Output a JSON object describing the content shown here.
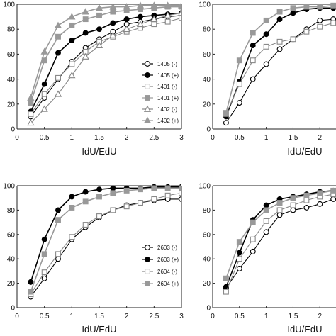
{
  "chart_data": [
    {
      "type": "line",
      "xlabel": "IdU/EdU",
      "ylabel": "",
      "xlim": [
        0,
        3
      ],
      "ylim": [
        0,
        100
      ],
      "xticks": [
        "0",
        "0.5",
        "1",
        "1.5",
        "2",
        "2.5",
        "3"
      ],
      "yticks": [
        "0",
        "20",
        "40",
        "60",
        "80",
        "100"
      ],
      "x": [
        0.25,
        0.5,
        0.75,
        1,
        1.25,
        1.5,
        1.75,
        2,
        2.25,
        2.5,
        2.75,
        3
      ],
      "legend_position": "right",
      "series": [
        {
          "name": "1405 (-)",
          "marker": "circle-open",
          "color": "#000000",
          "values": [
            10,
            25,
            40,
            54,
            65,
            72,
            78,
            84,
            86,
            88,
            90,
            91
          ]
        },
        {
          "name": "1405 (+)",
          "marker": "circle-filled",
          "color": "#000000",
          "values": [
            14,
            36,
            61,
            71,
            77,
            80,
            85,
            88,
            90,
            91,
            92,
            93
          ]
        },
        {
          "name": "1401 (-)",
          "marker": "square-open",
          "color": "#888888",
          "values": [
            12,
            28,
            41,
            52,
            62,
            70,
            74,
            78,
            81,
            84,
            86,
            89
          ]
        },
        {
          "name": "1401 (+)",
          "marker": "square-filled",
          "color": "#999999",
          "values": [
            21,
            55,
            74,
            83,
            88,
            91,
            94,
            95,
            96,
            97,
            98,
            98
          ]
        },
        {
          "name": "1402 (-)",
          "marker": "triangle-open",
          "color": "#888888",
          "values": [
            5,
            16,
            28,
            43,
            58,
            67,
            75,
            80,
            84,
            88,
            91,
            93
          ]
        },
        {
          "name": "1402 (+)",
          "marker": "triangle-filled",
          "color": "#999999",
          "values": [
            25,
            62,
            83,
            90,
            94,
            97,
            98,
            98,
            99,
            99,
            99,
            99
          ]
        }
      ]
    },
    {
      "type": "line",
      "xlabel": "IdU/EdU",
      "ylabel": "",
      "xlim": [
        0,
        2.3
      ],
      "ylim": [
        0,
        100
      ],
      "xticks": [
        "0",
        "0.5",
        "1",
        "1.5",
        "2"
      ],
      "yticks": [
        "0",
        "20",
        "40",
        "60",
        "80",
        "100"
      ],
      "x": [
        0.25,
        0.5,
        0.75,
        1,
        1.25,
        1.5,
        1.75,
        2,
        2.25
      ],
      "series": [
        {
          "marker": "circle-open",
          "color": "#000000",
          "values": [
            5,
            21,
            40,
            52,
            64,
            72,
            80,
            87,
            88
          ]
        },
        {
          "marker": "circle-filled",
          "color": "#000000",
          "values": [
            10,
            38,
            67,
            76,
            88,
            93,
            96,
            97,
            97
          ]
        },
        {
          "marker": "square-open",
          "color": "#888888",
          "values": [
            12,
            36,
            55,
            66,
            70,
            72,
            78,
            82,
            85
          ]
        },
        {
          "marker": "square-filled",
          "color": "#999999",
          "values": [
            13,
            55,
            77,
            87,
            94,
            97,
            98,
            98,
            99
          ]
        }
      ]
    },
    {
      "type": "line",
      "xlabel": "IdU/EdU",
      "ylabel": "",
      "xlim": [
        0,
        3
      ],
      "ylim": [
        0,
        100
      ],
      "xticks": [
        "0",
        "0.5",
        "1",
        "1.5",
        "2",
        "2.5",
        "3"
      ],
      "yticks": [
        "0",
        "20",
        "40",
        "60",
        "80",
        "100"
      ],
      "x": [
        0.25,
        0.5,
        0.75,
        1,
        1.25,
        1.5,
        1.75,
        2,
        2.25,
        2.5,
        2.75,
        3
      ],
      "legend_position": "right",
      "series": [
        {
          "name": "2603 (-)",
          "marker": "circle-open",
          "color": "#000000",
          "values": [
            9,
            24,
            40,
            56,
            66,
            74,
            80,
            84,
            86,
            88,
            89,
            89
          ]
        },
        {
          "name": "2603 (+)",
          "marker": "circle-filled",
          "color": "#000000",
          "values": [
            21,
            56,
            80,
            91,
            95,
            97,
            98,
            98,
            98,
            99,
            99,
            99
          ]
        },
        {
          "name": "2604 (-)",
          "marker": "square-open",
          "color": "#888888",
          "values": [
            11,
            29,
            44,
            58,
            68,
            75,
            80,
            83,
            86,
            89,
            92,
            94
          ]
        },
        {
          "name": "2604 (+)",
          "marker": "square-filled",
          "color": "#999999",
          "values": [
            13,
            44,
            72,
            82,
            87,
            91,
            94,
            96,
            97,
            98,
            98,
            98
          ]
        }
      ]
    },
    {
      "type": "line",
      "xlabel": "IdU/EdU",
      "ylabel": "",
      "xlim": [
        0,
        2.3
      ],
      "ylim": [
        0,
        100
      ],
      "xticks": [
        "0",
        "0.5",
        "1",
        "1.5",
        "2"
      ],
      "yticks": [
        "0",
        "20",
        "40",
        "60",
        "80",
        "100"
      ],
      "x": [
        0.25,
        0.5,
        0.75,
        1,
        1.25,
        1.5,
        1.75,
        2,
        2.25
      ],
      "series": [
        {
          "marker": "circle-open",
          "color": "#000000",
          "values": [
            16,
            32,
            46,
            62,
            76,
            80,
            82,
            85,
            89
          ]
        },
        {
          "marker": "circle-filled",
          "color": "#000000",
          "values": [
            17,
            45,
            72,
            84,
            89,
            91,
            93,
            95,
            96
          ]
        },
        {
          "marker": "square-open",
          "color": "#888888",
          "values": [
            13,
            40,
            56,
            71,
            80,
            84,
            88,
            91,
            93
          ]
        },
        {
          "marker": "square-filled",
          "color": "#999999",
          "values": [
            24,
            54,
            70,
            80,
            86,
            90,
            92,
            94,
            96
          ]
        }
      ]
    }
  ]
}
